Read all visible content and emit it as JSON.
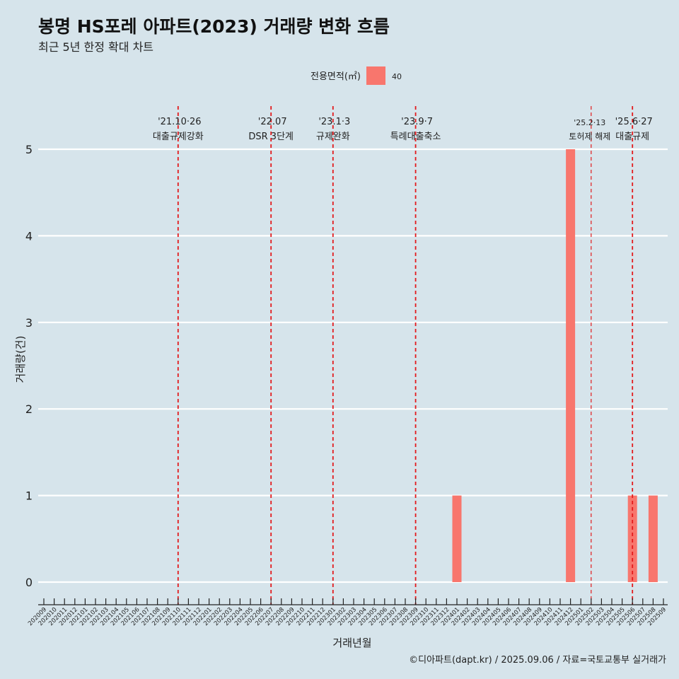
{
  "chart_data": {
    "type": "bar",
    "title": "봉명 HS포레 아파트(2023) 거래량 변화 흐름",
    "subtitle": "최근 5년 한정 확대 차트",
    "xlabel": "거래년월",
    "ylabel": "거래량(건)",
    "caption": "©디아파트(dapt.kr) / 2025.09.06 / 자료=국토교통부 실거래가",
    "legend": {
      "title": "전용면적(㎡)",
      "position": "top",
      "entries": [
        {
          "label": "40",
          "color": "#f8766d"
        }
      ]
    },
    "ylim": [
      0,
      5
    ],
    "yticks": [
      0,
      1,
      2,
      3,
      4,
      5
    ],
    "categories": [
      "202009",
      "202010",
      "202011",
      "202012",
      "202101",
      "202102",
      "202103",
      "202104",
      "202105",
      "202106",
      "202107",
      "202108",
      "202109",
      "202110",
      "202111",
      "202112",
      "202201",
      "202202",
      "202203",
      "202204",
      "202205",
      "202206",
      "202207",
      "202208",
      "202209",
      "202210",
      "202211",
      "202212",
      "202301",
      "202302",
      "202303",
      "202304",
      "202305",
      "202306",
      "202307",
      "202308",
      "202309",
      "202310",
      "202311",
      "202312",
      "202401",
      "202402",
      "202403",
      "202404",
      "202405",
      "202406",
      "202407",
      "202408",
      "202409",
      "202410",
      "202411",
      "202412",
      "202501",
      "202502",
      "202503",
      "202504",
      "202505",
      "202506",
      "202507",
      "202508",
      "202509"
    ],
    "series": [
      {
        "name": "40",
        "color": "#f8766d",
        "values": [
          0,
          0,
          0,
          0,
          0,
          0,
          0,
          0,
          0,
          0,
          0,
          0,
          0,
          0,
          0,
          0,
          0,
          0,
          0,
          0,
          0,
          0,
          0,
          0,
          0,
          0,
          0,
          0,
          0,
          0,
          0,
          0,
          0,
          0,
          0,
          0,
          0,
          0,
          0,
          0,
          1,
          0,
          0,
          0,
          0,
          0,
          0,
          0,
          0,
          0,
          0,
          5,
          0,
          0,
          0,
          0,
          0,
          1,
          0,
          1,
          0
        ]
      }
    ],
    "annotations": [
      {
        "month": "202110",
        "date": "'21.10·26",
        "label": "대출규제강화"
      },
      {
        "month": "202207",
        "date": "'22.07",
        "label": "DSR 3단계"
      },
      {
        "month": "202301",
        "date": "'23.1·3",
        "label": "규제완화"
      },
      {
        "month": "202309",
        "date": "'23.9·7",
        "label": "특례대출축소"
      },
      {
        "month": "202502",
        "date": "'25.2·13",
        "label": "토허제 해제"
      },
      {
        "month": "202506",
        "date": "'25.6·27",
        "label": "대출규제"
      }
    ],
    "grid": true,
    "vline_color": "#e31a1c"
  }
}
